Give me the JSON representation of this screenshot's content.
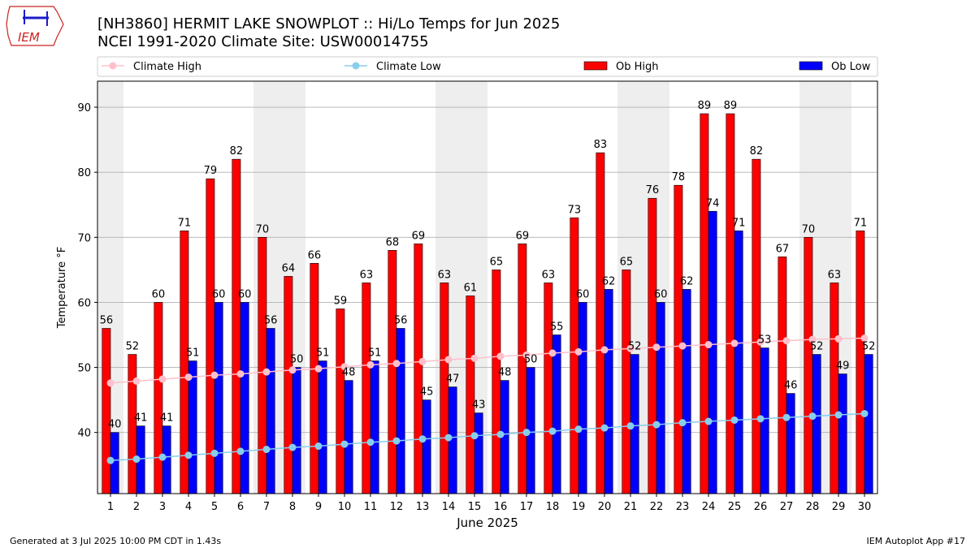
{
  "header": {
    "logo_text": "IEM",
    "title_line1": "[NH3860] HERMIT LAKE SNOWPLOT :: Hi/Lo Temps for Jun 2025",
    "title_line2": "NCEI 1991-2020 Climate Site: USW00014755"
  },
  "footer": {
    "generated": "Generated at 3 Jul 2025 10:00 PM CDT in 1.43s",
    "app": "IEM Autoplot App #17"
  },
  "colors": {
    "ob_high": "#ff0000",
    "ob_low": "#0000ff",
    "climate_high": "#ffc0cb",
    "climate_low": "#87ceeb",
    "weekend_band": "#eeeeee",
    "grid": "#b0b0b0",
    "logo": "#cc2222"
  },
  "chart_data": {
    "type": "bar",
    "xlabel": "June 2025",
    "ylabel": "Temperature °F",
    "ylim": [
      30.6,
      94
    ],
    "yticks": [
      40,
      50,
      60,
      70,
      80,
      90
    ],
    "grid": "horizontal",
    "legend_placement": "top",
    "weekend_days": [
      1,
      7,
      8,
      14,
      15,
      21,
      22,
      28,
      29
    ],
    "categories": [
      "1",
      "2",
      "3",
      "4",
      "5",
      "6",
      "7",
      "8",
      "9",
      "10",
      "11",
      "12",
      "13",
      "14",
      "15",
      "16",
      "17",
      "18",
      "19",
      "20",
      "21",
      "22",
      "23",
      "24",
      "25",
      "26",
      "27",
      "28",
      "29",
      "30"
    ],
    "series": [
      {
        "name": "Climate High",
        "kind": "line",
        "values": [
          47.6,
          47.9,
          48.2,
          48.5,
          48.8,
          49.0,
          49.3,
          49.6,
          49.8,
          50.1,
          50.4,
          50.6,
          50.9,
          51.2,
          51.4,
          51.7,
          51.9,
          52.2,
          52.4,
          52.7,
          52.9,
          53.1,
          53.3,
          53.5,
          53.7,
          53.9,
          54.1,
          54.3,
          54.4,
          54.5
        ]
      },
      {
        "name": "Climate Low",
        "kind": "line",
        "values": [
          35.7,
          35.9,
          36.2,
          36.5,
          36.8,
          37.1,
          37.4,
          37.7,
          37.9,
          38.2,
          38.5,
          38.7,
          39.0,
          39.2,
          39.5,
          39.7,
          40.0,
          40.2,
          40.5,
          40.7,
          41.0,
          41.2,
          41.5,
          41.7,
          41.9,
          42.1,
          42.3,
          42.5,
          42.7,
          42.9
        ]
      },
      {
        "name": "Ob High",
        "kind": "bar",
        "values": [
          56,
          52,
          60,
          71,
          79,
          82,
          70,
          64,
          66,
          59,
          63,
          68,
          69,
          63,
          61,
          65,
          69,
          63,
          73,
          83,
          65,
          76,
          78,
          89,
          89,
          82,
          67,
          70,
          63,
          71
        ]
      },
      {
        "name": "Ob Low",
        "kind": "bar",
        "values": [
          40,
          41,
          41,
          51,
          60,
          60,
          56,
          50,
          51,
          48,
          51,
          56,
          45,
          47,
          43,
          48,
          50,
          55,
          60,
          62,
          52,
          60,
          62,
          74,
          71,
          53,
          46,
          52,
          49,
          52
        ]
      }
    ]
  }
}
